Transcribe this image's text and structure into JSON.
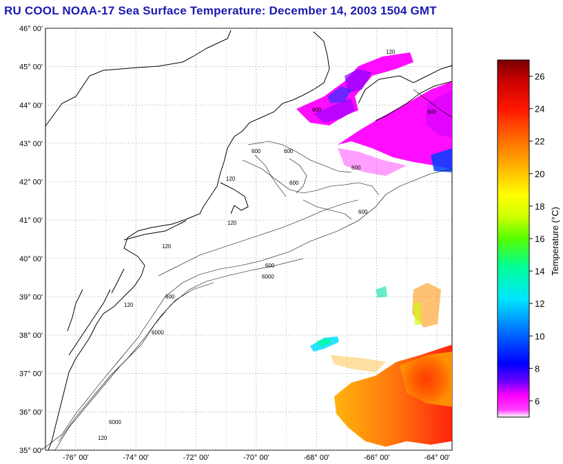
{
  "header": {
    "title": "RU COOL  NOAA-17  Sea Surface Temperature:  December 14, 2003 1504 GMT"
  },
  "map": {
    "lat_range": [
      35,
      46
    ],
    "lon_range": [
      -77,
      -63.5
    ],
    "lat_ticks": [
      "35° 00'",
      "36° 00'",
      "37° 00'",
      "38° 00'",
      "39° 00'",
      "40° 00'",
      "41° 00'",
      "42° 00'",
      "43° 00'",
      "44° 00'",
      "45° 00'",
      "46° 00'"
    ],
    "lon_ticks": [
      "-76° 00'",
      "-74° 00'",
      "-72° 00'",
      "-70° 00'",
      "-68° 00'",
      "-66° 00'",
      "-64° 00'"
    ],
    "grid": "dotted",
    "contour_labels": [
      "120",
      "600",
      "6000"
    ]
  },
  "colorbar": {
    "label": "Temperature (°C)",
    "range": [
      5,
      27
    ],
    "ticks": [
      "6",
      "8",
      "10",
      "12",
      "14",
      "16",
      "18",
      "20",
      "22",
      "24",
      "26"
    ],
    "colors": [
      "#ff00ff",
      "#6a00ff",
      "#0000ff",
      "#0078ff",
      "#00e6ff",
      "#00ff99",
      "#44ff00",
      "#ccff00",
      "#ffff00",
      "#ffc000",
      "#ff7800",
      "#ff2000",
      "#cc0000",
      "#800000"
    ]
  }
}
